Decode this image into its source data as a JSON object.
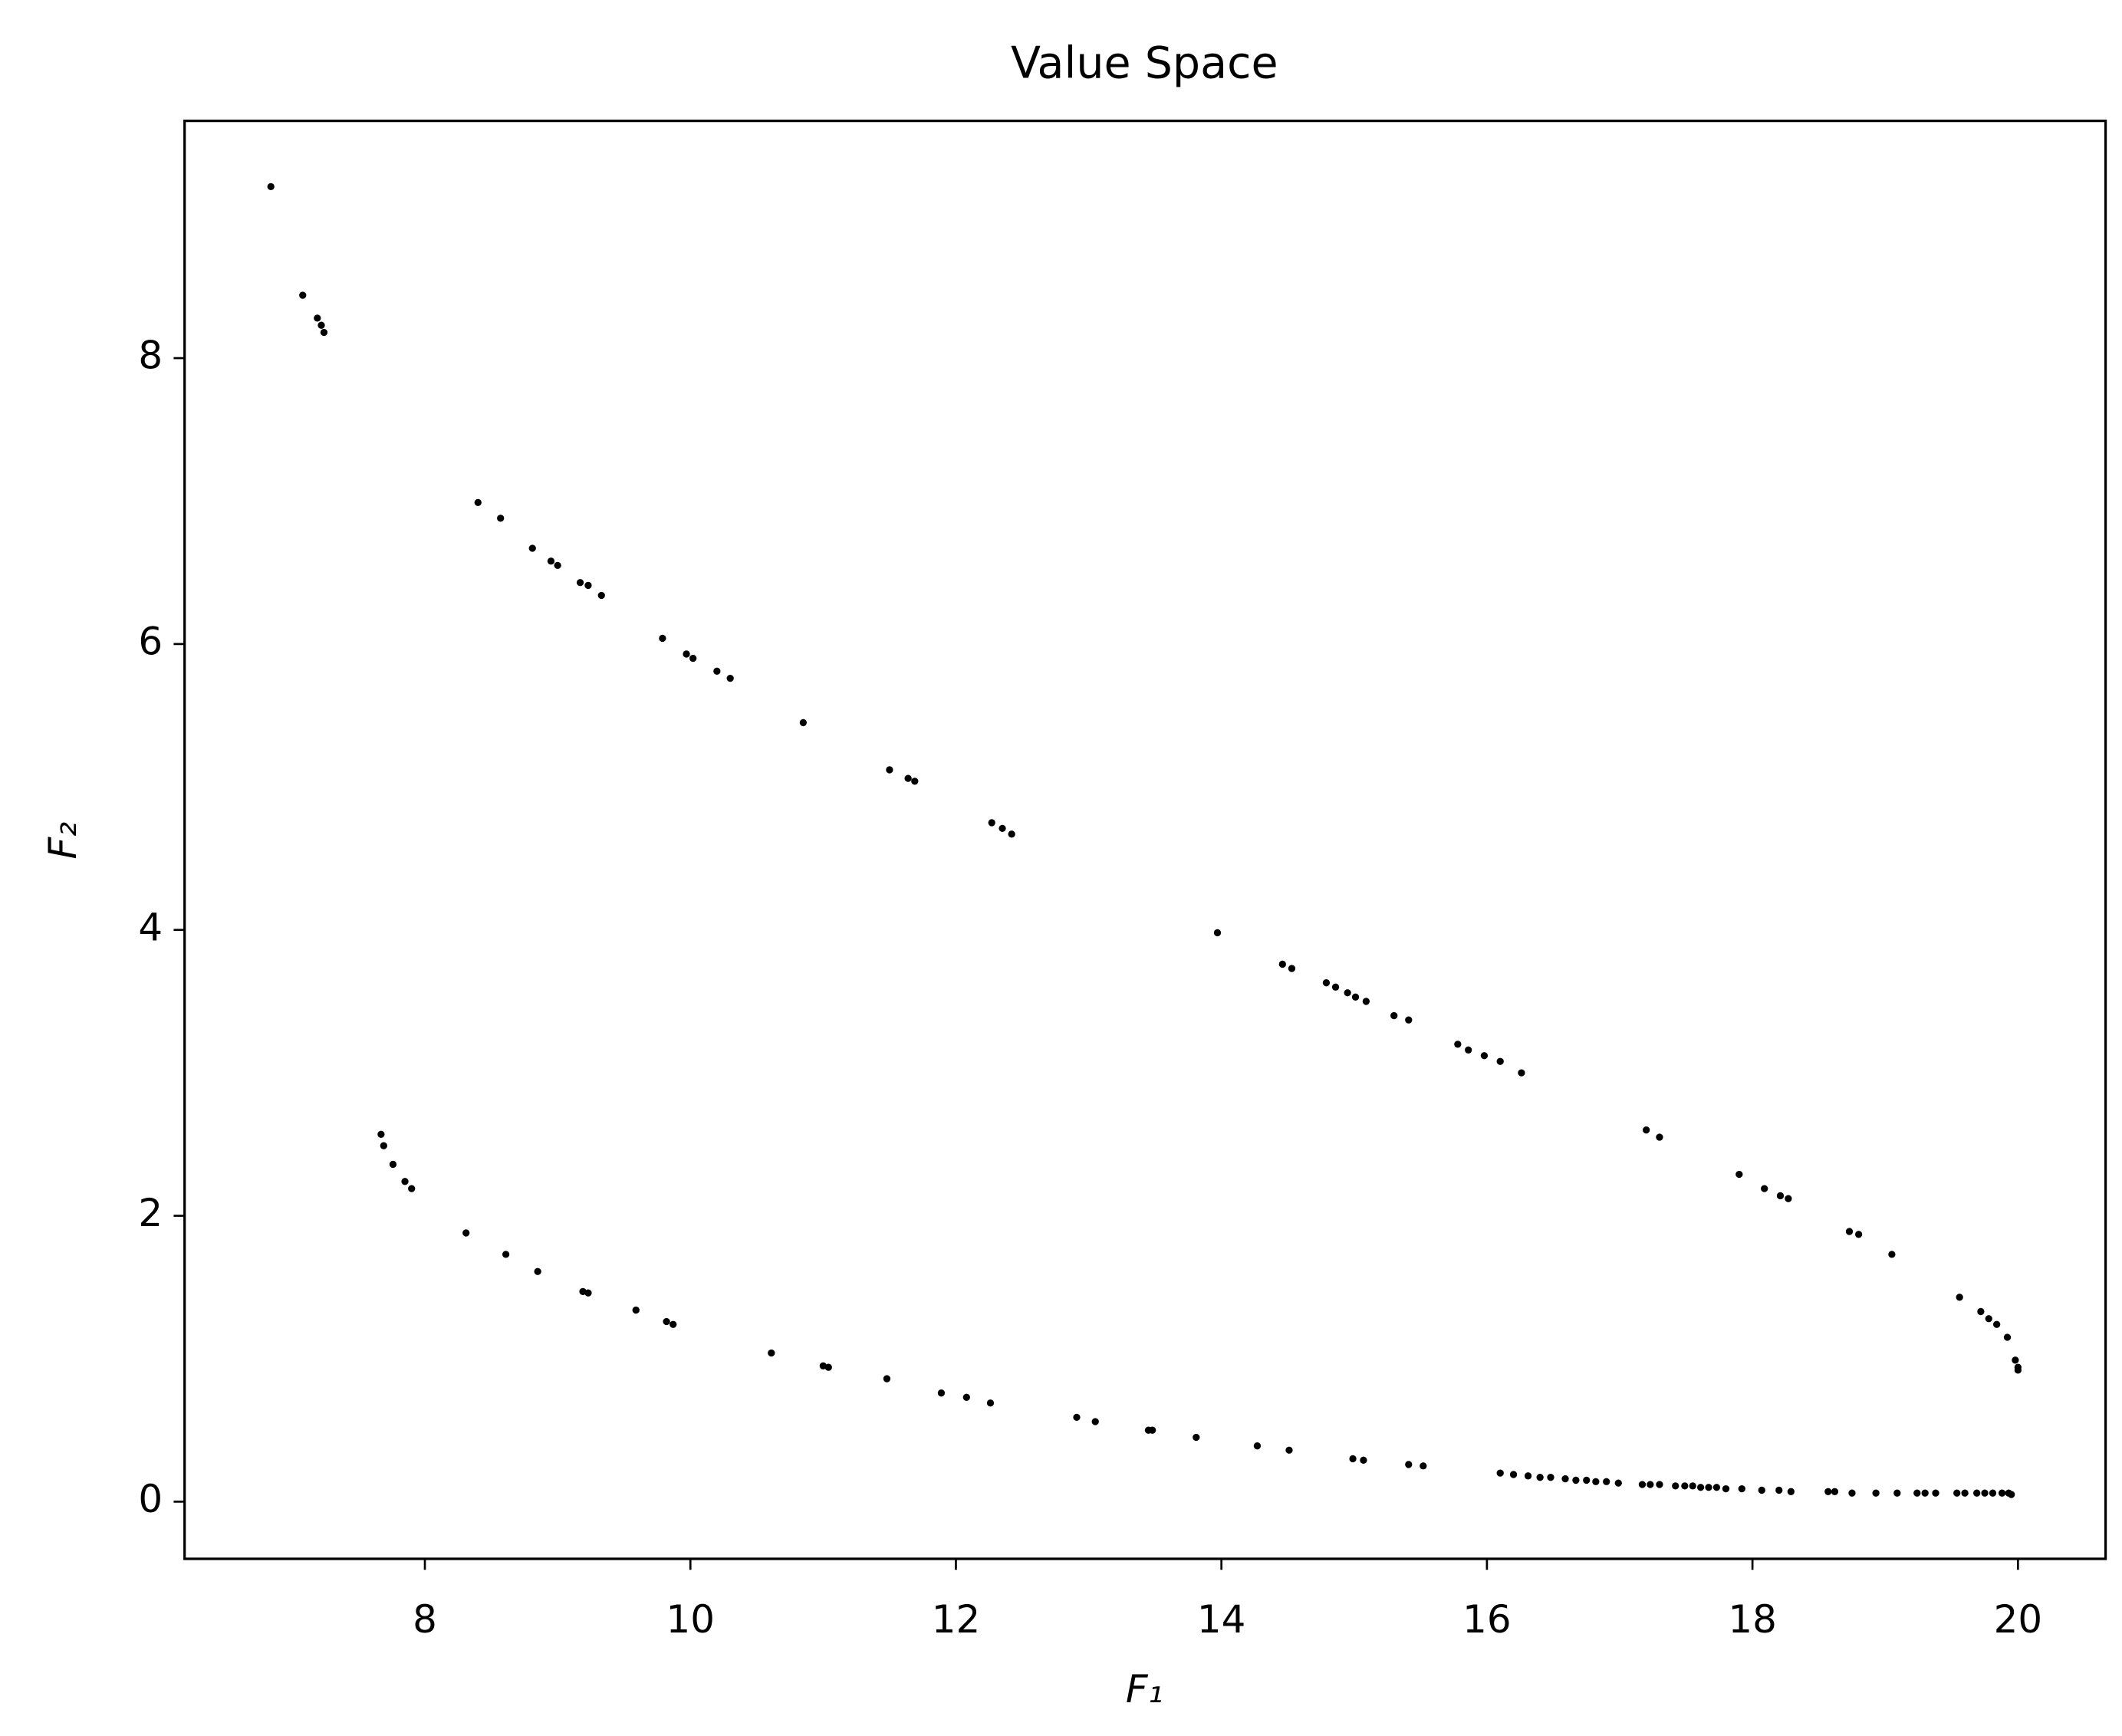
{
  "chart_data": {
    "type": "scatter",
    "title": "Value Space",
    "xlabel": "F₁",
    "ylabel": "F₂",
    "color": "#000000",
    "xlim": [
      6.19,
      20.66
    ],
    "ylim": [
      -0.4,
      9.66
    ],
    "xticks": [
      8,
      10,
      12,
      14,
      16,
      18,
      20
    ],
    "yticks": [
      0,
      2,
      4,
      6,
      8
    ],
    "x": [
      6.84,
      7.08,
      7.19,
      7.22,
      7.24,
      8.4,
      8.57,
      8.81,
      8.95,
      9.0,
      9.17,
      9.23,
      9.33,
      9.79,
      9.97,
      10.02,
      10.2,
      10.3,
      10.85,
      11.5,
      11.64,
      11.69,
      12.27,
      12.35,
      12.42,
      13.97,
      14.46,
      14.53,
      14.79,
      14.86,
      14.95,
      15.01,
      15.09,
      15.3,
      15.41,
      15.78,
      15.86,
      15.98,
      16.1,
      16.26,
      17.2,
      17.3,
      17.9,
      18.09,
      18.21,
      18.27,
      18.73,
      18.8,
      19.05,
      19.56,
      19.72,
      19.78,
      19.84,
      19.92,
      19.98,
      20.0,
      20.0,
      7.67,
      7.69,
      7.76,
      7.85,
      7.9,
      8.31,
      8.61,
      8.85,
      9.19,
      9.23,
      9.59,
      9.82,
      9.87,
      10.61,
      11.0,
      11.04,
      11.48,
      11.89,
      12.08,
      12.26,
      12.91,
      13.05,
      13.45,
      13.48,
      13.81,
      14.27,
      14.51,
      14.99,
      15.07,
      15.41,
      15.52,
      16.1,
      16.2,
      16.31,
      16.4,
      16.48,
      16.59,
      16.67,
      16.75,
      16.82,
      16.9,
      16.99,
      17.17,
      17.23,
      17.3,
      17.42,
      17.49,
      17.55,
      17.61,
      17.67,
      17.73,
      17.8,
      17.92,
      18.07,
      18.2,
      18.29,
      18.57,
      18.62,
      18.75,
      18.93,
      19.09,
      19.24,
      19.3,
      19.38,
      19.54,
      19.6,
      19.69,
      19.75,
      19.81,
      19.88,
      19.93,
      19.95
    ],
    "values": [
      9.2,
      8.44,
      8.28,
      8.23,
      8.18,
      6.99,
      6.88,
      6.67,
      6.58,
      6.55,
      6.43,
      6.41,
      6.34,
      6.04,
      5.93,
      5.9,
      5.81,
      5.76,
      5.45,
      5.12,
      5.06,
      5.04,
      4.75,
      4.71,
      4.67,
      3.98,
      3.76,
      3.73,
      3.63,
      3.6,
      3.56,
      3.53,
      3.5,
      3.4,
      3.37,
      3.2,
      3.16,
      3.12,
      3.08,
      3.0,
      2.6,
      2.55,
      2.29,
      2.19,
      2.14,
      2.12,
      1.89,
      1.87,
      1.73,
      1.43,
      1.33,
      1.28,
      1.24,
      1.15,
      0.99,
      0.94,
      0.92,
      2.57,
      2.49,
      2.36,
      2.24,
      2.19,
      1.88,
      1.73,
      1.61,
      1.47,
      1.46,
      1.34,
      1.26,
      1.24,
      1.04,
      0.95,
      0.94,
      0.86,
      0.76,
      0.73,
      0.69,
      0.59,
      0.56,
      0.5,
      0.5,
      0.45,
      0.39,
      0.36,
      0.3,
      0.29,
      0.26,
      0.25,
      0.2,
      0.19,
      0.18,
      0.17,
      0.17,
      0.16,
      0.15,
      0.15,
      0.14,
      0.14,
      0.13,
      0.12,
      0.12,
      0.12,
      0.11,
      0.11,
      0.11,
      0.1,
      0.1,
      0.1,
      0.09,
      0.09,
      0.08,
      0.08,
      0.07,
      0.07,
      0.07,
      0.06,
      0.06,
      0.06,
      0.06,
      0.06,
      0.06,
      0.06,
      0.06,
      0.06,
      0.06,
      0.06,
      0.06,
      0.06,
      0.05
    ]
  }
}
